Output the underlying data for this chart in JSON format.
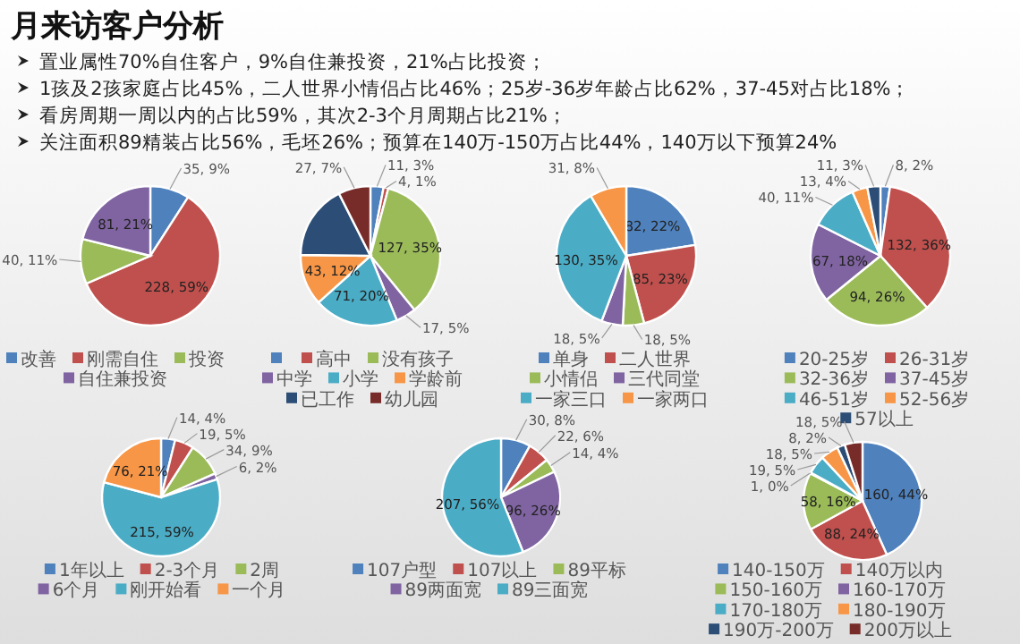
{
  "chart_data": [
    {
      "type": "other",
      "title": "月来访客户分析",
      "annotations": [
        "置业属性70%自住客户，9%自住兼投资，21%占比投资；",
        "1孩及2孩家庭占比45%，二人世界小情侣占比46%；25岁-36岁年龄占比62%，37-45对占比18%；",
        "看房周期一周以内的占比59%，其次2-3个月周期占比21%；",
        "关注面积89精装占比56%，毛坯26%；预算在140万-150万占比44%，140万以下预算24%"
      ]
    },
    {
      "type": "pie",
      "legend": "bottom",
      "categories": [
        "改善",
        "刚需自住",
        "投资",
        "自住兼投资"
      ],
      "values": [
        35,
        228,
        40,
        81
      ],
      "value_labels": [
        "35, 9%",
        "228, 59%",
        "40, 11%",
        "81, 21%"
      ],
      "colors": [
        "#4f81bd",
        "#c0504d",
        "#9bbb59",
        "#8064a2"
      ]
    },
    {
      "type": "pie",
      "legend": "bottom",
      "categories": [
        null,
        "高中",
        "没有孩子",
        "中学",
        "小学",
        "学龄前",
        "已工作",
        "幼儿园"
      ],
      "values": [
        11,
        4,
        127,
        17,
        71,
        43,
        63,
        27
      ],
      "value_labels": [
        "11, 3%",
        "4, 1%",
        "127, 35%",
        "17, 5%",
        "71, 20%",
        "43, 12%",
        null,
        "27, 7%"
      ],
      "colors": [
        "#4f81bd",
        "#c0504d",
        "#9bbb59",
        "#8064a2",
        "#4bacc6",
        "#f79646",
        "#2c4d75",
        "#772c2a"
      ]
    },
    {
      "type": "pie",
      "legend": "bottom",
      "categories": [
        "单身",
        "二人世界",
        "小情侣",
        "三代同堂",
        "一家三口",
        "一家两口"
      ],
      "values": [
        82,
        85,
        18,
        18,
        130,
        31
      ],
      "value_labels": [
        "82, 22%",
        "85, 23%",
        "18, 5%",
        "18, 5%",
        "130, 35%",
        "31, 8%"
      ],
      "colors": [
        "#4f81bd",
        "#c0504d",
        "#9bbb59",
        "#8064a2",
        "#4bacc6",
        "#f79646"
      ]
    },
    {
      "type": "pie",
      "legend": "bottom",
      "categories": [
        "20-25岁",
        "26-31岁",
        "32-36岁",
        "37-45岁",
        "46-51岁",
        "52-56岁",
        "57以上"
      ],
      "values": [
        8,
        132,
        94,
        67,
        40,
        13,
        11
      ],
      "value_labels": [
        "8, 2%",
        "132, 36%",
        "94, 26%",
        "67, 18%",
        "40, 11%",
        "13, 4%",
        "11, 3%"
      ],
      "colors": [
        "#4f81bd",
        "#c0504d",
        "#9bbb59",
        "#8064a2",
        "#4bacc6",
        "#f79646",
        "#2c4d75"
      ]
    },
    {
      "type": "pie",
      "legend": "bottom",
      "categories": [
        "1年以上",
        "2-3个月",
        "2周",
        "6个月",
        "刚开始看",
        "一个月"
      ],
      "values": [
        14,
        19,
        34,
        6,
        215,
        76
      ],
      "value_labels": [
        "14, 4%",
        "19, 5%",
        "34, 9%",
        "6, 2%",
        "215, 59%",
        "76, 21%"
      ],
      "colors": [
        "#4f81bd",
        "#c0504d",
        "#9bbb59",
        "#8064a2",
        "#4bacc6",
        "#f79646"
      ]
    },
    {
      "type": "pie",
      "legend": "bottom",
      "categories": [
        "107户型",
        "107以上",
        "89平标",
        "89两面宽",
        "89三面宽"
      ],
      "values": [
        30,
        22,
        14,
        96,
        207
      ],
      "value_labels": [
        "30, 8%",
        "22, 6%",
        "14, 4%",
        "96, 26%",
        "207, 56%"
      ],
      "colors": [
        "#4f81bd",
        "#c0504d",
        "#9bbb59",
        "#8064a2",
        "#4bacc6"
      ]
    },
    {
      "type": "pie",
      "legend": "bottom",
      "categories": [
        "140-150万",
        "140万以内",
        "150-160万",
        "160-170万",
        "170-180万",
        "180-190万",
        "190万-200万",
        "200万以上"
      ],
      "values": [
        160,
        88,
        58,
        1,
        19,
        18,
        8,
        18
      ],
      "value_labels": [
        "160, 44%",
        "88, 24%",
        "58, 16%",
        "1, 0%",
        "19, 5%",
        "18, 5%",
        "8, 2%",
        "18, 5%"
      ],
      "colors": [
        "#4f81bd",
        "#c0504d",
        "#9bbb59",
        "#8064a2",
        "#4bacc6",
        "#f79646",
        "#2c4d75",
        "#772c2a"
      ]
    }
  ]
}
